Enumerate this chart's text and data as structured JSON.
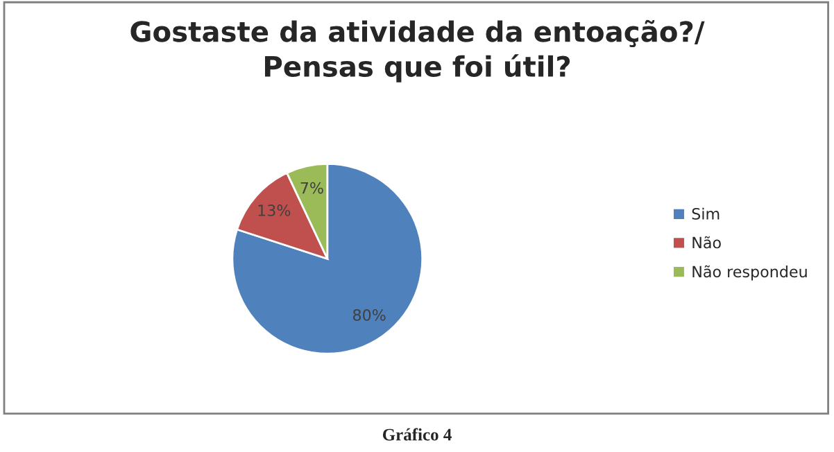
{
  "chart_data": {
    "type": "pie",
    "title": "Gostaste da atividade da entoação?/\nPensas que foi útil?",
    "categories": [
      "Sim",
      "Não",
      "Não respondeu"
    ],
    "values": [
      80,
      13,
      7
    ],
    "colors": [
      "#4f81bd",
      "#c0504d",
      "#9bbb59"
    ],
    "value_labels": [
      "80%",
      "13%",
      "7%"
    ],
    "legend": "right",
    "annotations": [
      "Gráfico 4"
    ]
  }
}
